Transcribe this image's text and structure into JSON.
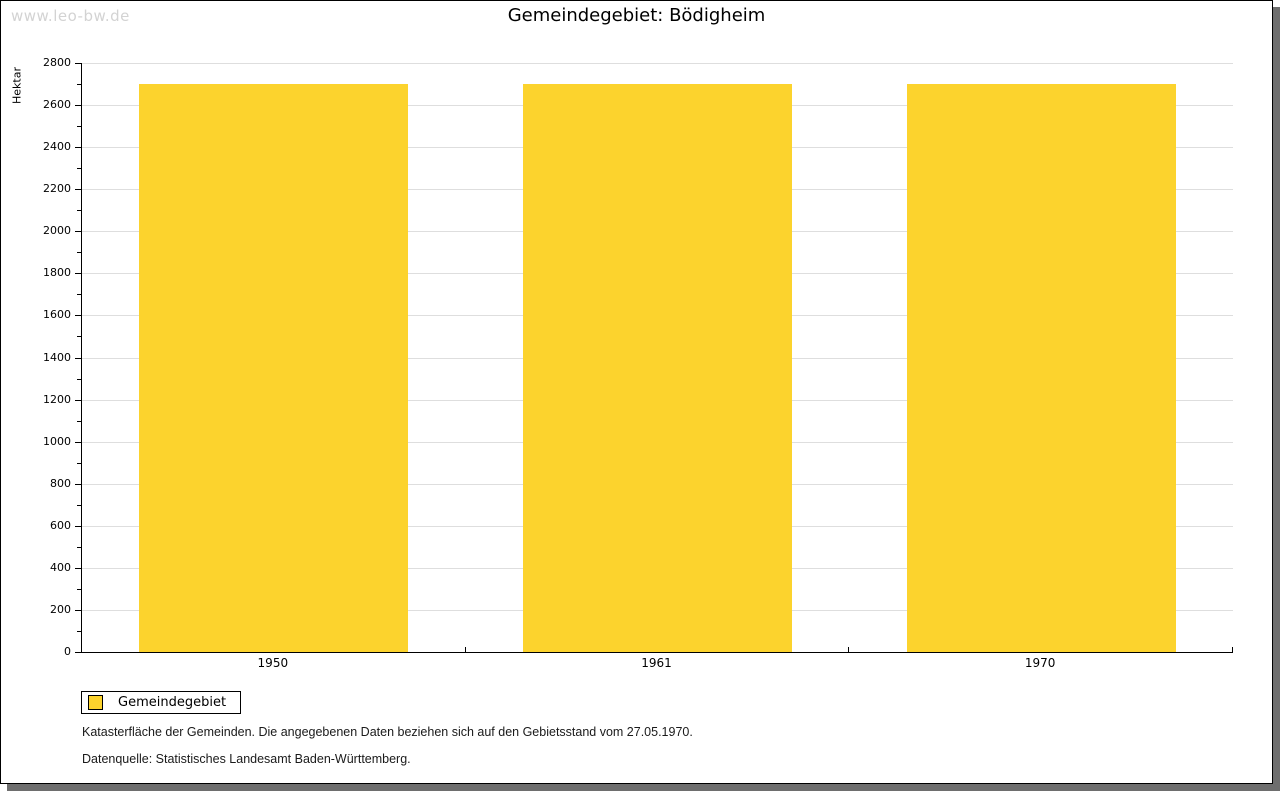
{
  "watermark": "www.leo-bw.de",
  "title": "Gemeindegebiet: Bödigheim",
  "chart_data": {
    "type": "bar",
    "title": "Gemeindegebiet: Bödigheim",
    "categories": [
      "1950",
      "1961",
      "1970"
    ],
    "series": [
      {
        "name": "Gemeindegebiet",
        "values": [
          2700,
          2700,
          2700
        ]
      }
    ],
    "xlabel": "",
    "ylabel": "Hektar",
    "ylim": [
      0,
      2800
    ],
    "y_major_step": 200,
    "y_minor_step": 100,
    "grid": "horizontal-major-only",
    "legend_position": "bottom-left"
  },
  "legend": {
    "items": [
      {
        "label": "Gemeindegebiet",
        "color": "#fcd32d"
      }
    ]
  },
  "footnotes": [
    "Katasterfläche der Gemeinden. Die angegebenen Daten beziehen sich auf den Gebietsstand vom 27.05.1970.",
    "Datenquelle: Statistisches Landesamt Baden-Württemberg."
  ],
  "colors": {
    "bar": "#fcd32d",
    "gridline": "#dedede",
    "axis": "#000000",
    "shadow": "#6e6e6e",
    "watermark": "#d3d3d3"
  }
}
